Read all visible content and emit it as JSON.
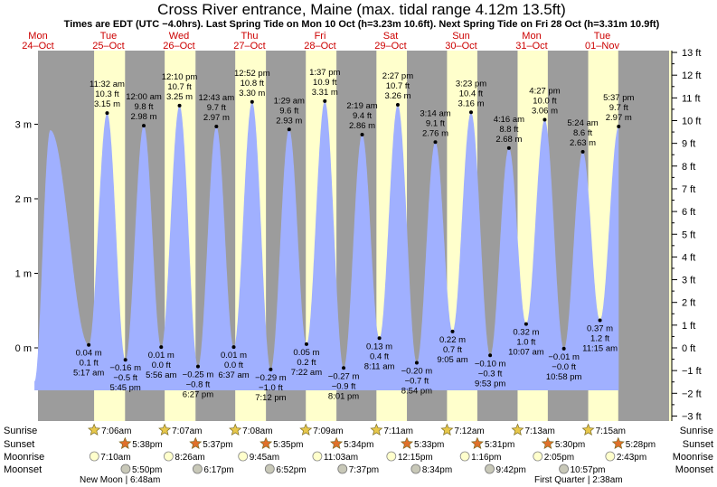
{
  "chart_data": {
    "type": "area",
    "title": "Cross River entrance, Maine (max. tidal range 4.12m 13.5ft)",
    "subtitle": "Times are EDT (UTC −4.0hrs). Last Spring Tide on Mon 10 Oct (h=3.23m 10.6ft). Next Spring Tide on Fri 28 Oct (h=3.31m 10.9ft)",
    "days": [
      {
        "dow": "Mon",
        "date": "24–Oct"
      },
      {
        "dow": "Tue",
        "date": "25–Oct"
      },
      {
        "dow": "Wed",
        "date": "26–Oct"
      },
      {
        "dow": "Thu",
        "date": "27–Oct"
      },
      {
        "dow": "Fri",
        "date": "28–Oct"
      },
      {
        "dow": "Sat",
        "date": "29–Oct"
      },
      {
        "dow": "Sun",
        "date": "30–Oct"
      },
      {
        "dow": "Mon",
        "date": "31–Oct"
      },
      {
        "dow": "Tue",
        "date": "01–Nov"
      }
    ],
    "y_left": {
      "unit": "m",
      "ylim": [
        -0.9,
        3.9
      ],
      "ticks": [
        {
          "v": 0,
          "label": "0 m"
        },
        {
          "v": 1,
          "label": "1 m"
        },
        {
          "v": 2,
          "label": "2 m"
        },
        {
          "v": 3,
          "label": "3 m"
        }
      ]
    },
    "y_right": {
      "unit": "ft",
      "ticks": [
        "13 ft",
        "12 ft",
        "11 ft",
        "10 ft",
        "9 ft",
        "8 ft",
        "7 ft",
        "6 ft",
        "5 ft",
        "4 ft",
        "3 ft",
        "2 ft",
        "1 ft",
        "0 ft",
        "−1 ft",
        "−2 ft",
        "−3 ft"
      ],
      "values": [
        13,
        12,
        11,
        10,
        9,
        8,
        7,
        6,
        5,
        4,
        3,
        2,
        1,
        0,
        -1,
        -2,
        -3
      ]
    },
    "tides": [
      {
        "kind": "high",
        "hour": 16.2,
        "m": 2.92,
        "time": "",
        "ft": "",
        "mlabel": ""
      },
      {
        "kind": "low",
        "hour": 29.28,
        "m": 0.04,
        "time": "5:17 am",
        "ft": "0.1 ft",
        "mlabel": "0.04 m"
      },
      {
        "kind": "high",
        "hour": 35.53,
        "m": 3.15,
        "time": "11:32 am",
        "ft": "10.3 ft",
        "mlabel": "3.15 m"
      },
      {
        "kind": "low",
        "hour": 41.75,
        "m": -0.16,
        "time": "5:45 pm",
        "ft": "−0.5 ft",
        "mlabel": "−0.16 m"
      },
      {
        "kind": "high",
        "hour": 48.0,
        "m": 2.98,
        "time": "12:00 am",
        "ft": "9.8 ft",
        "mlabel": "2.98 m"
      },
      {
        "kind": "low",
        "hour": 53.93,
        "m": 0.01,
        "time": "5:56 am",
        "ft": "0.0 ft",
        "mlabel": "0.01 m"
      },
      {
        "kind": "high",
        "hour": 60.17,
        "m": 3.25,
        "time": "12:10 pm",
        "ft": "10.7 ft",
        "mlabel": "3.25 m"
      },
      {
        "kind": "low",
        "hour": 66.45,
        "m": -0.25,
        "time": "6:27 pm",
        "ft": "−0.8 ft",
        "mlabel": "−0.25 m"
      },
      {
        "kind": "high",
        "hour": 72.72,
        "m": 2.97,
        "time": "12:43 am",
        "ft": "9.7 ft",
        "mlabel": "2.97 m"
      },
      {
        "kind": "low",
        "hour": 78.62,
        "m": 0.01,
        "time": "6:37 am",
        "ft": "0.0 ft",
        "mlabel": "0.01 m"
      },
      {
        "kind": "high",
        "hour": 84.87,
        "m": 3.3,
        "time": "12:52 pm",
        "ft": "10.8 ft",
        "mlabel": "3.30 m"
      },
      {
        "kind": "low",
        "hour": 91.2,
        "m": -0.29,
        "time": "7:12 pm",
        "ft": "−1.0 ft",
        "mlabel": "−0.29 m"
      },
      {
        "kind": "high",
        "hour": 97.48,
        "m": 2.93,
        "time": "1:29 am",
        "ft": "9.6 ft",
        "mlabel": "2.93 m"
      },
      {
        "kind": "low",
        "hour": 103.37,
        "m": 0.05,
        "time": "7:22 am",
        "ft": "0.2 ft",
        "mlabel": "0.05 m"
      },
      {
        "kind": "high",
        "hour": 109.62,
        "m": 3.31,
        "time": "1:37 pm",
        "ft": "10.9 ft",
        "mlabel": "3.31 m"
      },
      {
        "kind": "low",
        "hour": 116.02,
        "m": -0.27,
        "time": "8:01 pm",
        "ft": "−0.9 ft",
        "mlabel": "−0.27 m"
      },
      {
        "kind": "high",
        "hour": 122.32,
        "m": 2.86,
        "time": "2:19 am",
        "ft": "9.4 ft",
        "mlabel": "2.86 m"
      },
      {
        "kind": "low",
        "hour": 128.18,
        "m": 0.13,
        "time": "8:11 am",
        "ft": "0.4 ft",
        "mlabel": "0.13 m"
      },
      {
        "kind": "high",
        "hour": 134.45,
        "m": 3.26,
        "time": "2:27 pm",
        "ft": "10.7 ft",
        "mlabel": "3.26 m"
      },
      {
        "kind": "low",
        "hour": 140.9,
        "m": -0.2,
        "time": "8:54 pm",
        "ft": "−0.7 ft",
        "mlabel": "−0.20 m"
      },
      {
        "kind": "high",
        "hour": 147.23,
        "m": 2.76,
        "time": "3:14 am",
        "ft": "9.1 ft",
        "mlabel": "2.76 m"
      },
      {
        "kind": "low",
        "hour": 153.08,
        "m": 0.22,
        "time": "9:05 am",
        "ft": "0.7 ft",
        "mlabel": "0.22 m"
      },
      {
        "kind": "high",
        "hour": 159.38,
        "m": 3.16,
        "time": "3:23 pm",
        "ft": "10.4 ft",
        "mlabel": "3.16 m"
      },
      {
        "kind": "low",
        "hour": 165.88,
        "m": -0.1,
        "time": "9:53 pm",
        "ft": "−0.3 ft",
        "mlabel": "−0.10 m"
      },
      {
        "kind": "high",
        "hour": 172.27,
        "m": 2.68,
        "time": "4:16 am",
        "ft": "8.8 ft",
        "mlabel": "2.68 m"
      },
      {
        "kind": "low",
        "hour": 178.12,
        "m": 0.32,
        "time": "10:07 am",
        "ft": "1.0 ft",
        "mlabel": "0.32 m"
      },
      {
        "kind": "high",
        "hour": 184.45,
        "m": 3.06,
        "time": "4:27 pm",
        "ft": "10.0 ft",
        "mlabel": "3.06 m"
      },
      {
        "kind": "low",
        "hour": 190.97,
        "m": -0.01,
        "time": "10:58 pm",
        "ft": "−0.0 ft",
        "mlabel": "−0.01 m"
      },
      {
        "kind": "high",
        "hour": 197.4,
        "m": 2.63,
        "time": "5:24 am",
        "ft": "8.6 ft",
        "mlabel": "2.63 m"
      },
      {
        "kind": "low",
        "hour": 203.25,
        "m": 0.37,
        "time": "11:15 am",
        "ft": "1.2 ft",
        "mlabel": "0.37 m"
      },
      {
        "kind": "high",
        "hour": 209.62,
        "m": 2.97,
        "time": "5:37 pm",
        "ft": "9.7 ft",
        "mlabel": "2.97 m"
      }
    ],
    "sun": [
      {
        "day": 1,
        "rise": "7:06am",
        "set": "5:38pm",
        "rise_h": 7.1,
        "set_h": 17.63
      },
      {
        "day": 2,
        "rise": "7:07am",
        "set": "5:37pm",
        "rise_h": 7.12,
        "set_h": 17.62
      },
      {
        "day": 3,
        "rise": "7:08am",
        "set": "5:35pm",
        "rise_h": 7.13,
        "set_h": 17.58
      },
      {
        "day": 4,
        "rise": "7:09am",
        "set": "5:34pm",
        "rise_h": 7.15,
        "set_h": 17.57
      },
      {
        "day": 5,
        "rise": "7:11am",
        "set": "5:33pm",
        "rise_h": 7.18,
        "set_h": 17.55
      },
      {
        "day": 6,
        "rise": "7:12am",
        "set": "5:31pm",
        "rise_h": 7.2,
        "set_h": 17.52
      },
      {
        "day": 7,
        "rise": "7:13am",
        "set": "5:30pm",
        "rise_h": 7.22,
        "set_h": 17.5
      },
      {
        "day": 8,
        "rise": "7:15am",
        "set": "5:28pm",
        "rise_h": 7.25,
        "set_h": 17.47
      }
    ],
    "moonrise": [
      {
        "day": 1,
        "time": "7:10am",
        "h": 7.17
      },
      {
        "day": 2,
        "time": "8:26am",
        "h": 8.43
      },
      {
        "day": 3,
        "time": "9:45am",
        "h": 9.75
      },
      {
        "day": 4,
        "time": "11:03am",
        "h": 11.05
      },
      {
        "day": 5,
        "time": "12:15pm",
        "h": 12.25
      },
      {
        "day": 6,
        "time": "1:16pm",
        "h": 13.27
      },
      {
        "day": 7,
        "time": "2:05pm",
        "h": 14.08
      },
      {
        "day": 8,
        "time": "2:43pm",
        "h": 14.72
      }
    ],
    "moonset": [
      {
        "day": 1,
        "time": "5:50pm",
        "h": 17.83
      },
      {
        "day": 2,
        "time": "6:17pm",
        "h": 18.28
      },
      {
        "day": 3,
        "time": "6:52pm",
        "h": 18.87
      },
      {
        "day": 4,
        "time": "7:37pm",
        "h": 19.62
      },
      {
        "day": 5,
        "time": "8:34pm",
        "h": 20.57
      },
      {
        "day": 6,
        "time": "9:42pm",
        "h": 21.7
      },
      {
        "day": 7,
        "time": "10:57pm",
        "h": 22.95
      }
    ],
    "row_labels": {
      "sunrise": "Sunrise",
      "sunset": "Sunset",
      "moonrise": "Moonrise",
      "moonset": "Moonset"
    },
    "moon_phases": [
      {
        "label": "New Moon",
        "time": "6:48am"
      },
      {
        "label": "First Quarter",
        "time": "2:38am"
      }
    ]
  }
}
